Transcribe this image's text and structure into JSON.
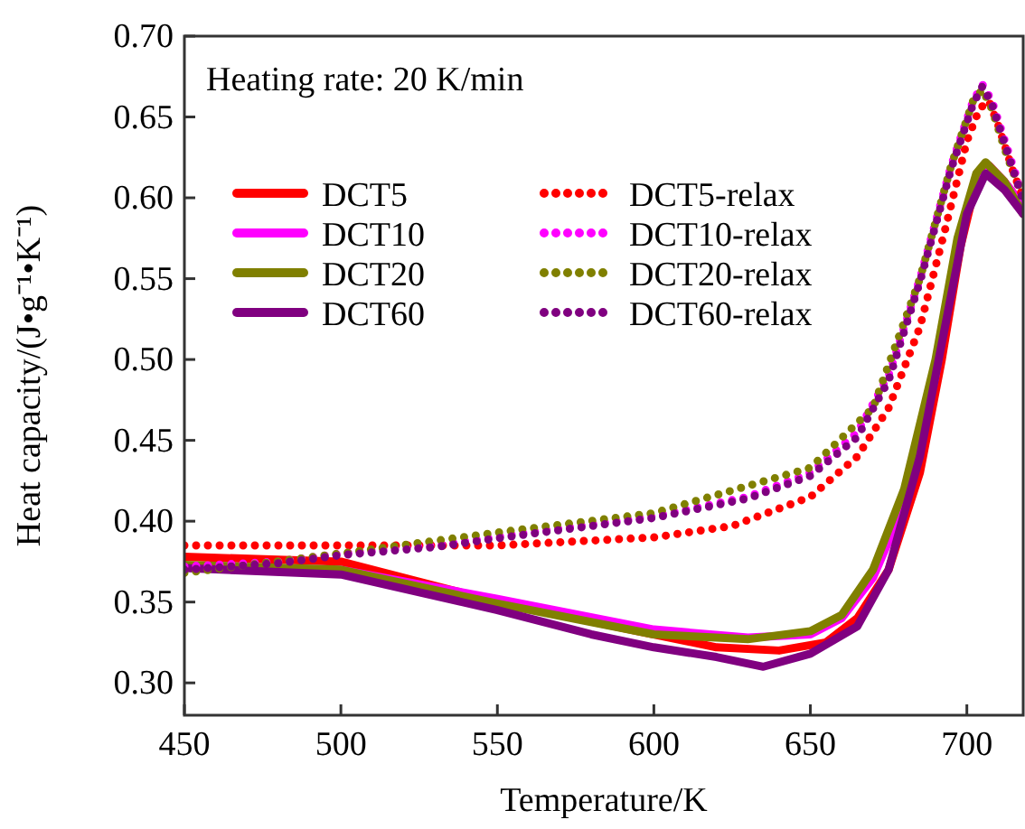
{
  "chart_data": {
    "type": "line",
    "xlabel": "Temperature/K",
    "ylabel": "Heat capacity/(J•g⁻¹•K⁻¹)",
    "annotations": [
      "Heating rate: 20 K/min"
    ],
    "xlim": [
      450,
      718
    ],
    "xticks": [
      450,
      500,
      550,
      600,
      650,
      700
    ],
    "ylim": [
      0.28,
      0.7
    ],
    "yticks": [
      {
        "value": 0.3,
        "label": "0.30"
      },
      {
        "value": 0.35,
        "label": "0.35"
      },
      {
        "value": 0.4,
        "label": "0.40"
      },
      {
        "value": 0.45,
        "label": "0.45"
      },
      {
        "value": 0.5,
        "label": "0.50"
      },
      {
        "value": 0.55,
        "label": "0.55"
      },
      {
        "value": 0.6,
        "label": "0.60"
      },
      {
        "value": 0.65,
        "label": "0.65"
      },
      {
        "value": 0.7,
        "label": "0.70"
      }
    ],
    "legend": "top left",
    "grid": false,
    "series": [
      {
        "name": "DCT5",
        "color": "#ff0000",
        "line_style": "solid",
        "x": [
          450,
          500,
          550,
          600,
          620,
          640,
          655,
          665,
          675,
          685,
          692,
          698,
          703,
          707,
          712,
          718
        ],
        "values": [
          0.378,
          0.375,
          0.35,
          0.33,
          0.322,
          0.32,
          0.325,
          0.34,
          0.37,
          0.43,
          0.5,
          0.57,
          0.61,
          0.62,
          0.61,
          0.595
        ]
      },
      {
        "name": "DCT10",
        "color": "#ff00ff",
        "line_style": "solid",
        "x": [
          450,
          500,
          550,
          600,
          630,
          650,
          660,
          670,
          680,
          690,
          697,
          703,
          707,
          712,
          718
        ],
        "values": [
          0.372,
          0.37,
          0.352,
          0.333,
          0.328,
          0.33,
          0.34,
          0.365,
          0.41,
          0.49,
          0.57,
          0.61,
          0.62,
          0.61,
          0.595
        ]
      },
      {
        "name": "DCT20",
        "color": "#808000",
        "line_style": "solid",
        "x": [
          450,
          500,
          550,
          600,
          630,
          650,
          660,
          670,
          680,
          690,
          697,
          703,
          706,
          712,
          718
        ],
        "values": [
          0.373,
          0.37,
          0.349,
          0.33,
          0.327,
          0.332,
          0.342,
          0.37,
          0.42,
          0.5,
          0.575,
          0.615,
          0.622,
          0.61,
          0.59
        ]
      },
      {
        "name": "DCT60",
        "color": "#800080",
        "line_style": "solid",
        "x": [
          450,
          500,
          550,
          580,
          600,
          620,
          635,
          650,
          665,
          675,
          685,
          693,
          700,
          706,
          712,
          718
        ],
        "values": [
          0.371,
          0.367,
          0.345,
          0.33,
          0.322,
          0.316,
          0.31,
          0.318,
          0.335,
          0.37,
          0.44,
          0.52,
          0.59,
          0.615,
          0.605,
          0.59
        ]
      },
      {
        "name": "DCT5-relax",
        "color": "#ff0000",
        "line_style": "dotted",
        "x": [
          450,
          500,
          550,
          600,
          625,
          650,
          665,
          675,
          685,
          693,
          700,
          704,
          707,
          710,
          715,
          718
        ],
        "values": [
          0.385,
          0.385,
          0.385,
          0.39,
          0.397,
          0.415,
          0.44,
          0.47,
          0.52,
          0.58,
          0.635,
          0.655,
          0.66,
          0.645,
          0.615,
          0.6
        ]
      },
      {
        "name": "DCT10-relax",
        "color": "#ff00ff",
        "line_style": "dotted",
        "x": [
          450,
          480,
          500,
          530,
          560,
          600,
          630,
          650,
          665,
          675,
          685,
          695,
          702,
          705,
          708,
          713,
          718
        ],
        "values": [
          0.372,
          0.375,
          0.38,
          0.385,
          0.393,
          0.403,
          0.415,
          0.43,
          0.455,
          0.49,
          0.55,
          0.62,
          0.66,
          0.67,
          0.66,
          0.63,
          0.6
        ]
      },
      {
        "name": "DCT20-relax",
        "color": "#808000",
        "line_style": "dotted",
        "x": [
          450,
          500,
          550,
          600,
          650,
          670,
          685,
          695,
          702,
          705,
          708,
          713,
          718
        ],
        "values": [
          0.368,
          0.38,
          0.393,
          0.405,
          0.433,
          0.47,
          0.55,
          0.62,
          0.66,
          0.667,
          0.655,
          0.625,
          0.6
        ]
      },
      {
        "name": "DCT60-relax",
        "color": "#800080",
        "line_style": "dotted",
        "x": [
          450,
          480,
          500,
          530,
          560,
          600,
          630,
          650,
          665,
          675,
          685,
          695,
          702,
          705,
          708,
          713,
          718
        ],
        "values": [
          0.37,
          0.374,
          0.379,
          0.384,
          0.392,
          0.402,
          0.414,
          0.428,
          0.452,
          0.487,
          0.548,
          0.618,
          0.658,
          0.669,
          0.658,
          0.628,
          0.598
        ]
      }
    ]
  }
}
